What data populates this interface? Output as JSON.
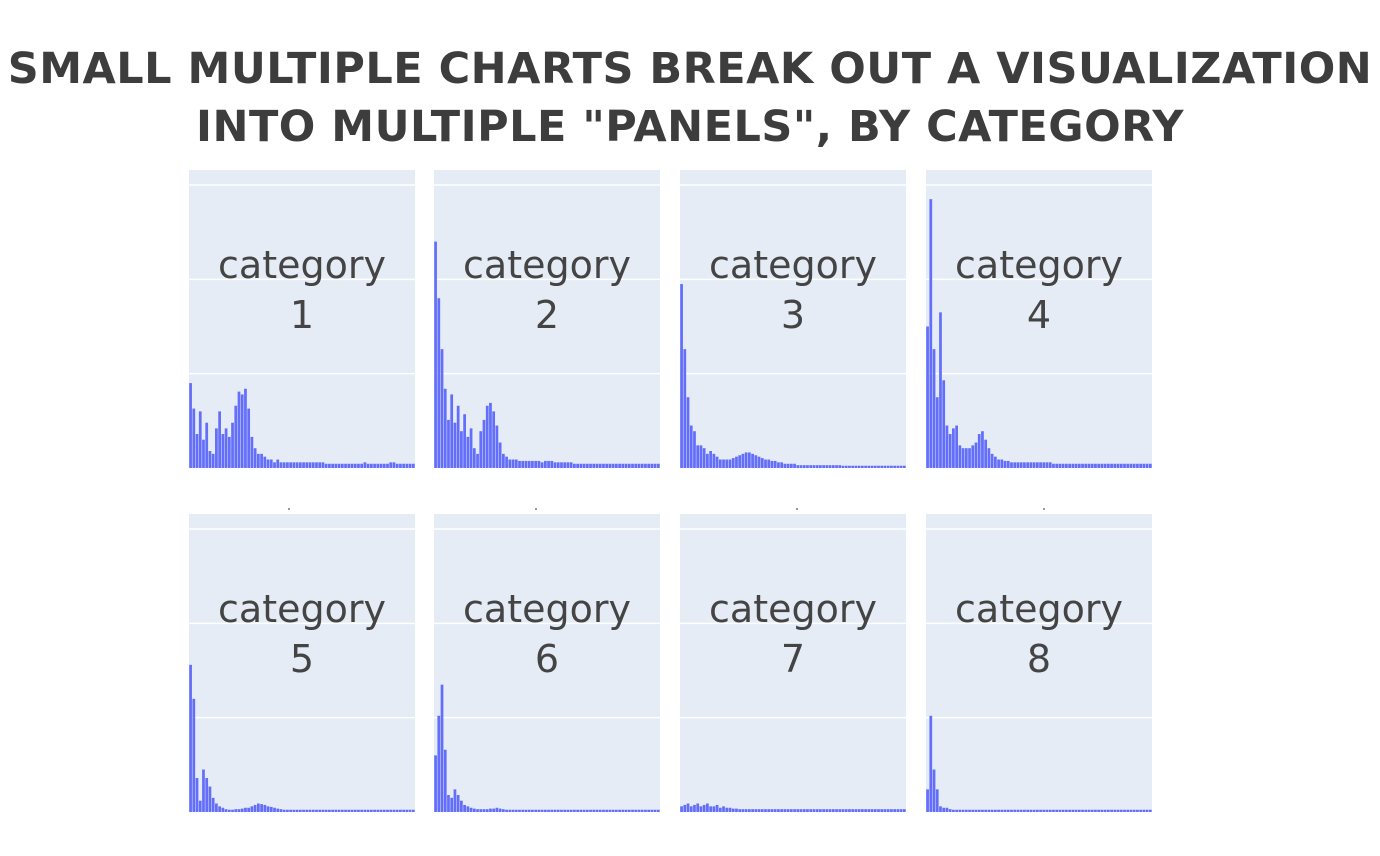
{
  "title": {
    "line1": "SMALL MULTIPLE CHARTS BREAK OUT A VISUALIZATION",
    "line2": "INTO MULTIPLE \"PANELS\", BY CATEGORY"
  },
  "colors": {
    "bar": "#636efa",
    "panel_background": "#e5ecf6",
    "gridline": "#ffffff",
    "title_text": "#3d3d3d",
    "label_text": "#444444"
  },
  "chart_data": {
    "type": "bar",
    "layout": "small multiples, 2 rows x 4 columns (facet by category)",
    "grid": true,
    "ylim": [
      0,
      1
    ],
    "x_bins": 70,
    "panels": [
      {
        "label_word": "category",
        "label_num": "1",
        "values": [
          0.3,
          0.21,
          0.12,
          0.2,
          0.1,
          0.16,
          0.06,
          0.05,
          0.14,
          0.2,
          0.12,
          0.14,
          0.11,
          0.16,
          0.22,
          0.27,
          0.26,
          0.28,
          0.21,
          0.11,
          0.07,
          0.05,
          0.05,
          0.04,
          0.03,
          0.03,
          0.02,
          0.03,
          0.02,
          0.02,
          0.02,
          0.02,
          0.02,
          0.02,
          0.02,
          0.02,
          0.02,
          0.02,
          0.02,
          0.02,
          0.02,
          0.02,
          0.015,
          0.015,
          0.015,
          0.015,
          0.015,
          0.015,
          0.015,
          0.015,
          0.015,
          0.015,
          0.015,
          0.015,
          0.02,
          0.015,
          0.015,
          0.015,
          0.015,
          0.015,
          0.015,
          0.015,
          0.02,
          0.02,
          0.015,
          0.015,
          0.015,
          0.015,
          0.015,
          0.015
        ]
      },
      {
        "label_word": "category",
        "label_num": "2",
        "values": [
          0.8,
          0.6,
          0.42,
          0.28,
          0.17,
          0.26,
          0.16,
          0.22,
          0.13,
          0.19,
          0.11,
          0.14,
          0.07,
          0.05,
          0.13,
          0.17,
          0.22,
          0.23,
          0.2,
          0.15,
          0.09,
          0.05,
          0.04,
          0.03,
          0.03,
          0.03,
          0.025,
          0.025,
          0.025,
          0.025,
          0.025,
          0.025,
          0.025,
          0.02,
          0.025,
          0.025,
          0.025,
          0.02,
          0.02,
          0.02,
          0.02,
          0.02,
          0.02,
          0.015,
          0.015,
          0.015,
          0.015,
          0.015,
          0.015,
          0.015,
          0.015,
          0.015,
          0.015,
          0.015,
          0.015,
          0.015,
          0.015,
          0.015,
          0.015,
          0.015,
          0.015,
          0.015,
          0.015,
          0.015,
          0.015,
          0.015,
          0.015,
          0.015,
          0.015,
          0.015
        ]
      },
      {
        "label_word": "category",
        "label_num": "3",
        "values": [
          0.65,
          0.42,
          0.25,
          0.15,
          0.13,
          0.08,
          0.08,
          0.07,
          0.05,
          0.06,
          0.05,
          0.04,
          0.03,
          0.03,
          0.03,
          0.03,
          0.035,
          0.04,
          0.045,
          0.05,
          0.055,
          0.055,
          0.05,
          0.045,
          0.04,
          0.035,
          0.03,
          0.03,
          0.025,
          0.025,
          0.02,
          0.02,
          0.015,
          0.015,
          0.015,
          0.015,
          0.01,
          0.01,
          0.01,
          0.01,
          0.01,
          0.01,
          0.01,
          0.01,
          0.01,
          0.01,
          0.01,
          0.01,
          0.01,
          0.01,
          0.008,
          0.008,
          0.008,
          0.008,
          0.008,
          0.008,
          0.008,
          0.008,
          0.008,
          0.008,
          0.008,
          0.008,
          0.008,
          0.008,
          0.008,
          0.008,
          0.008,
          0.008,
          0.008,
          0.008
        ]
      },
      {
        "label_word": "category",
        "label_num": "4",
        "values": [
          0.5,
          0.95,
          0.42,
          0.25,
          0.55,
          0.31,
          0.15,
          0.12,
          0.14,
          0.15,
          0.08,
          0.07,
          0.07,
          0.07,
          0.08,
          0.09,
          0.12,
          0.13,
          0.1,
          0.07,
          0.05,
          0.04,
          0.03,
          0.03,
          0.025,
          0.025,
          0.02,
          0.02,
          0.02,
          0.02,
          0.02,
          0.02,
          0.02,
          0.02,
          0.02,
          0.02,
          0.02,
          0.02,
          0.02,
          0.015,
          0.015,
          0.015,
          0.015,
          0.015,
          0.015,
          0.015,
          0.015,
          0.015,
          0.015,
          0.015,
          0.015,
          0.015,
          0.015,
          0.015,
          0.015,
          0.015,
          0.015,
          0.015,
          0.015,
          0.015,
          0.015,
          0.015,
          0.015,
          0.015,
          0.015,
          0.015,
          0.015,
          0.015,
          0.015,
          0.015
        ]
      },
      {
        "label_word": "category",
        "label_num": "5",
        "values": [
          0.52,
          0.4,
          0.12,
          0.04,
          0.15,
          0.12,
          0.09,
          0.05,
          0.03,
          0.02,
          0.015,
          0.01,
          0.008,
          0.008,
          0.01,
          0.01,
          0.012,
          0.015,
          0.015,
          0.02,
          0.025,
          0.03,
          0.028,
          0.025,
          0.02,
          0.018,
          0.015,
          0.012,
          0.01,
          0.008,
          0.008,
          0.008,
          0.008,
          0.008,
          0.008,
          0.008,
          0.008,
          0.008,
          0.008,
          0.008,
          0.008,
          0.008,
          0.008,
          0.008,
          0.008,
          0.008,
          0.008,
          0.008,
          0.008,
          0.008,
          0.008,
          0.008,
          0.008,
          0.008,
          0.008,
          0.008,
          0.008,
          0.008,
          0.008,
          0.008,
          0.008,
          0.008,
          0.008,
          0.008,
          0.008,
          0.008,
          0.008,
          0.008,
          0.008,
          0.008
        ]
      },
      {
        "label_word": "category",
        "label_num": "6",
        "values": [
          0.2,
          0.34,
          0.45,
          0.22,
          0.06,
          0.05,
          0.08,
          0.06,
          0.04,
          0.025,
          0.02,
          0.015,
          0.012,
          0.01,
          0.01,
          0.01,
          0.01,
          0.012,
          0.012,
          0.015,
          0.012,
          0.01,
          0.008,
          0.008,
          0.008,
          0.008,
          0.008,
          0.008,
          0.008,
          0.008,
          0.008,
          0.008,
          0.008,
          0.008,
          0.008,
          0.008,
          0.008,
          0.008,
          0.008,
          0.008,
          0.008,
          0.008,
          0.008,
          0.008,
          0.008,
          0.008,
          0.008,
          0.008,
          0.008,
          0.008,
          0.008,
          0.008,
          0.008,
          0.008,
          0.008,
          0.008,
          0.008,
          0.008,
          0.008,
          0.008,
          0.008,
          0.008,
          0.008,
          0.008,
          0.008,
          0.008,
          0.008,
          0.008,
          0.008,
          0.008
        ]
      },
      {
        "label_word": "category",
        "label_num": "7",
        "values": [
          0.02,
          0.025,
          0.03,
          0.02,
          0.025,
          0.03,
          0.02,
          0.025,
          0.03,
          0.02,
          0.02,
          0.025,
          0.015,
          0.02,
          0.015,
          0.015,
          0.012,
          0.012,
          0.01,
          0.01,
          0.01,
          0.01,
          0.01,
          0.01,
          0.01,
          0.01,
          0.01,
          0.01,
          0.01,
          0.01,
          0.01,
          0.01,
          0.01,
          0.01,
          0.01,
          0.01,
          0.01,
          0.01,
          0.01,
          0.01,
          0.01,
          0.01,
          0.01,
          0.01,
          0.01,
          0.01,
          0.01,
          0.01,
          0.01,
          0.01,
          0.01,
          0.01,
          0.01,
          0.01,
          0.01,
          0.01,
          0.01,
          0.01,
          0.01,
          0.01,
          0.01,
          0.01,
          0.01,
          0.01,
          0.01,
          0.01,
          0.01,
          0.01,
          0.01,
          0.01
        ]
      },
      {
        "label_word": "category",
        "label_num": "8",
        "values": [
          0.08,
          0.34,
          0.15,
          0.08,
          0.02,
          0.015,
          0.015,
          0.01,
          0.008,
          0.008,
          0.008,
          0.008,
          0.008,
          0.008,
          0.008,
          0.008,
          0.008,
          0.008,
          0.008,
          0.008,
          0.008,
          0.008,
          0.008,
          0.008,
          0.008,
          0.008,
          0.008,
          0.008,
          0.008,
          0.008,
          0.008,
          0.008,
          0.008,
          0.008,
          0.008,
          0.008,
          0.008,
          0.008,
          0.008,
          0.008,
          0.008,
          0.008,
          0.008,
          0.008,
          0.008,
          0.008,
          0.008,
          0.008,
          0.008,
          0.008,
          0.008,
          0.008,
          0.008,
          0.008,
          0.008,
          0.008,
          0.008,
          0.008,
          0.008,
          0.008,
          0.008,
          0.008,
          0.008,
          0.008,
          0.008,
          0.008,
          0.008,
          0.008,
          0.008,
          0.008
        ]
      }
    ]
  }
}
